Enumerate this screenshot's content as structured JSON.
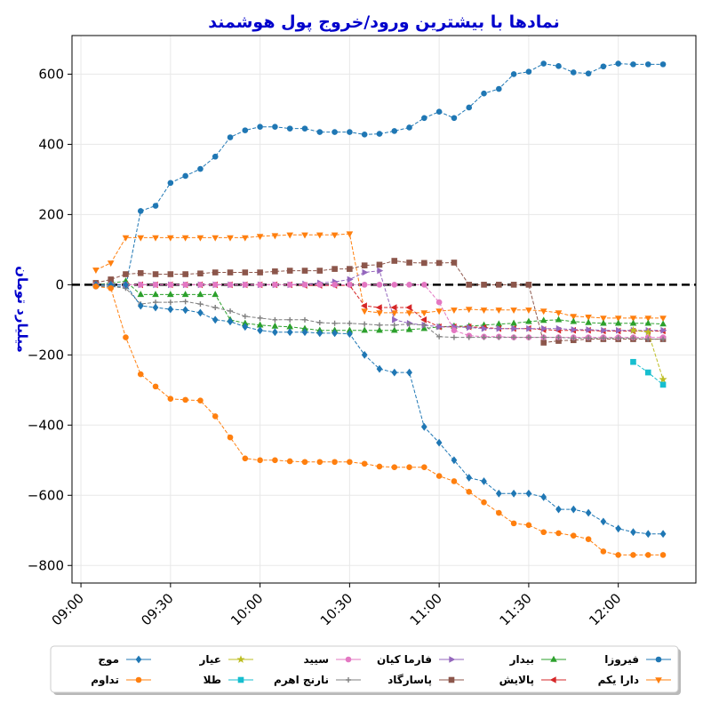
{
  "chart_data": {
    "type": "line",
    "title": "نمادها با بیشترین ورود/خروج پول هوشمند",
    "ylabel": "میلیارد تومان",
    "xlabel": "",
    "ylim": [
      -850,
      710
    ],
    "y_ticks": [
      -800,
      -600,
      -400,
      -200,
      0,
      200,
      400,
      600
    ],
    "y_tick_labels": [
      "−800",
      "−600",
      "−400",
      "−200",
      "0",
      "200",
      "400",
      "600"
    ],
    "x_ticks": [
      "09:00",
      "09:30",
      "10:00",
      "10:30",
      "11:00",
      "11:30",
      "12:00"
    ],
    "x_tick_minutes": [
      540,
      570,
      600,
      630,
      660,
      690,
      720
    ],
    "xlim_minutes": [
      537,
      746
    ],
    "grid": true,
    "zero_line": true,
    "legend_placement": "bottom-center",
    "series": [
      {
        "name": "فیروزا",
        "color": "#1f77b4",
        "marker": "circle",
        "x": [
          "09:05",
          "09:10",
          "09:15",
          "09:20",
          "09:25",
          "09:30",
          "09:35",
          "09:40",
          "09:45",
          "09:50",
          "09:55",
          "10:00",
          "10:05",
          "10:10",
          "10:15",
          "10:20",
          "10:25",
          "10:30",
          "10:35",
          "10:40",
          "10:45",
          "10:50",
          "10:55",
          "11:00",
          "11:05",
          "11:10",
          "11:15",
          "11:20",
          "11:25",
          "11:30",
          "11:35",
          "11:40",
          "11:45",
          "11:50",
          "11:55",
          "12:00",
          "12:05",
          "12:10",
          "12:15"
        ],
        "y": [
          -5,
          -5,
          -5,
          210,
          225,
          290,
          310,
          330,
          365,
          420,
          440,
          450,
          450,
          445,
          445,
          435,
          435,
          435,
          428,
          430,
          438,
          448,
          475,
          493,
          475,
          505,
          545,
          558,
          600,
          607,
          630,
          623,
          605,
          602,
          622,
          630,
          628,
          628,
          628
        ]
      },
      {
        "name": "دارا یکم",
        "color": "#ff7f0e",
        "marker": "triangle-down",
        "x": [
          "09:05",
          "09:10",
          "09:15",
          "09:20",
          "09:25",
          "09:30",
          "09:35",
          "09:40",
          "09:45",
          "09:50",
          "09:55",
          "10:00",
          "10:05",
          "10:10",
          "10:15",
          "10:20",
          "10:25",
          "10:30",
          "10:35",
          "10:40",
          "10:45",
          "10:50",
          "10:55",
          "11:00",
          "11:05",
          "11:10",
          "11:15",
          "11:20",
          "11:25",
          "11:30",
          "11:35",
          "11:40",
          "11:45",
          "11:50",
          "11:55",
          "12:00",
          "12:05",
          "12:10",
          "12:15"
        ],
        "y": [
          42,
          62,
          134,
          134,
          134,
          134,
          134,
          134,
          134,
          134,
          134,
          138,
          140,
          142,
          142,
          142,
          142,
          145,
          -75,
          -80,
          -80,
          -80,
          -80,
          -75,
          -72,
          -70,
          -72,
          -72,
          -72,
          -72,
          -75,
          -80,
          -90,
          -92,
          -95,
          -95,
          -95,
          -95,
          -95
        ]
      },
      {
        "name": "بیدار",
        "color": "#2ca02c",
        "marker": "triangle-up",
        "x": [
          "09:05",
          "09:10",
          "09:15",
          "09:20",
          "09:25",
          "09:30",
          "09:35",
          "09:40",
          "09:45",
          "09:50",
          "09:55",
          "10:00",
          "10:05",
          "10:10",
          "10:15",
          "10:20",
          "10:25",
          "10:30",
          "10:35",
          "10:40",
          "10:45",
          "10:50",
          "10:55",
          "11:00",
          "11:05",
          "11:10",
          "11:15",
          "11:20",
          "11:25",
          "11:30",
          "11:35",
          "11:40",
          "11:45",
          "11:50",
          "11:55",
          "12:00",
          "12:05",
          "12:10",
          "12:15"
        ],
        "y": [
          0,
          5,
          10,
          -28,
          -28,
          -28,
          -28,
          -28,
          -28,
          -100,
          -110,
          -115,
          -118,
          -120,
          -125,
          -130,
          -130,
          -130,
          -130,
          -130,
          -130,
          -128,
          -125,
          -120,
          -118,
          -118,
          -115,
          -112,
          -110,
          -105,
          -102,
          -100,
          -105,
          -108,
          -110,
          -110,
          -110,
          -110,
          -112
        ]
      },
      {
        "name": "پالایش",
        "color": "#d62728",
        "marker": "triangle-left",
        "x": [
          "09:05",
          "09:10",
          "09:15",
          "09:20",
          "09:25",
          "09:30",
          "09:35",
          "09:40",
          "09:45",
          "09:50",
          "09:55",
          "10:00",
          "10:05",
          "10:10",
          "10:15",
          "10:20",
          "10:25",
          "10:30",
          "10:35",
          "10:40",
          "10:45",
          "10:50",
          "10:55",
          "11:00",
          "11:05",
          "11:10",
          "11:15",
          "11:20",
          "11:25",
          "11:30",
          "11:35",
          "11:40",
          "11:45",
          "11:50",
          "11:55",
          "12:00",
          "12:05",
          "12:10",
          "12:15"
        ],
        "y": [
          0,
          0,
          0,
          0,
          0,
          0,
          0,
          0,
          0,
          0,
          0,
          0,
          0,
          0,
          -2,
          -2,
          -2,
          -2,
          -60,
          -65,
          -65,
          -65,
          -100,
          -120,
          -120,
          -120,
          -122,
          -125,
          -125,
          -125,
          -128,
          -130,
          -130,
          -130,
          -132,
          -132,
          -132,
          -132,
          -132
        ]
      },
      {
        "name": "فارما کیان",
        "color": "#9467bd",
        "marker": "triangle-right",
        "x": [
          "09:05",
          "09:10",
          "09:15",
          "09:20",
          "09:25",
          "09:30",
          "09:35",
          "09:40",
          "09:45",
          "09:50",
          "09:55",
          "10:00",
          "10:05",
          "10:10",
          "10:15",
          "10:20",
          "10:25",
          "10:30",
          "10:35",
          "10:40",
          "10:45",
          "10:50",
          "10:55",
          "11:00",
          "11:05",
          "11:10",
          "11:15",
          "11:20",
          "11:25",
          "11:30",
          "11:35",
          "11:40",
          "11:45",
          "11:50",
          "11:55",
          "12:00",
          "12:05",
          "12:10",
          "12:15"
        ],
        "y": [
          0,
          0,
          0,
          0,
          0,
          0,
          0,
          0,
          0,
          0,
          0,
          0,
          0,
          0,
          2,
          5,
          8,
          15,
          35,
          40,
          -100,
          -110,
          -115,
          -120,
          -120,
          -122,
          -125,
          -125,
          -125,
          -125,
          -125,
          -125,
          -128,
          -128,
          -130,
          -130,
          -130,
          -130,
          -130
        ]
      },
      {
        "name": "پاسارگاد",
        "color": "#8c564b",
        "marker": "square",
        "x": [
          "09:05",
          "09:10",
          "09:15",
          "09:20",
          "09:25",
          "09:30",
          "09:35",
          "09:40",
          "09:45",
          "09:50",
          "09:55",
          "10:00",
          "10:05",
          "10:10",
          "10:15",
          "10:20",
          "10:25",
          "10:30",
          "10:35",
          "10:40",
          "10:45",
          "10:50",
          "10:55",
          "11:00",
          "11:05",
          "11:10",
          "11:15",
          "11:20",
          "11:25",
          "11:30",
          "11:35",
          "11:40",
          "11:45",
          "11:50",
          "11:55",
          "12:00",
          "12:05",
          "12:10",
          "12:15"
        ],
        "y": [
          5,
          15,
          30,
          33,
          30,
          30,
          30,
          32,
          35,
          35,
          35,
          35,
          38,
          40,
          40,
          40,
          45,
          45,
          55,
          57,
          68,
          63,
          62,
          62,
          63,
          0,
          0,
          0,
          0,
          0,
          -165,
          -160,
          -158,
          -155,
          -155,
          -155,
          -155,
          -155,
          -155
        ]
      },
      {
        "name": "سیید",
        "color": "#e377c2",
        "marker": "circle",
        "x": [
          "09:05",
          "09:10",
          "09:15",
          "09:20",
          "09:25",
          "09:30",
          "09:35",
          "09:40",
          "09:45",
          "09:50",
          "09:55",
          "10:00",
          "10:05",
          "10:10",
          "10:15",
          "10:20",
          "10:25",
          "10:30",
          "10:35",
          "10:40",
          "10:45",
          "10:50",
          "10:55",
          "11:00",
          "11:05",
          "11:10",
          "11:15",
          "11:20",
          "11:25",
          "11:30",
          "11:35",
          "11:40",
          "11:45",
          "11:50",
          "11:55",
          "12:00",
          "12:05",
          "12:10",
          "12:15"
        ],
        "y": [
          0,
          0,
          0,
          0,
          0,
          0,
          0,
          0,
          0,
          0,
          0,
          0,
          0,
          0,
          0,
          0,
          0,
          0,
          0,
          0,
          0,
          0,
          0,
          -50,
          -130,
          -145,
          -148,
          -148,
          -150,
          -150,
          -150,
          -150,
          -150,
          -150,
          -150,
          -150,
          -150,
          -150,
          -150
        ]
      },
      {
        "name": "نارنج اهرم",
        "color": "#7f7f7f",
        "marker": "plus",
        "x": [
          "09:05",
          "09:10",
          "09:15",
          "09:20",
          "09:25",
          "09:30",
          "09:35",
          "09:40",
          "09:45",
          "09:50",
          "09:55",
          "10:00",
          "10:05",
          "10:10",
          "10:15",
          "10:20",
          "10:25",
          "10:30",
          "10:35",
          "10:40",
          "10:45",
          "10:50",
          "10:55",
          "11:00",
          "11:05",
          "11:10",
          "11:15",
          "11:20",
          "11:25",
          "11:30",
          "11:35",
          "11:40",
          "11:45",
          "11:50",
          "11:55",
          "12:00",
          "12:05",
          "12:10",
          "12:15"
        ],
        "y": [
          0,
          -5,
          -10,
          -55,
          -50,
          -50,
          -48,
          -55,
          -65,
          -75,
          -90,
          -95,
          -100,
          -100,
          -100,
          -108,
          -110,
          -110,
          -112,
          -115,
          -115,
          -112,
          -115,
          -148,
          -150,
          -150,
          -150,
          -150,
          -150,
          -150,
          -150,
          -150,
          -152,
          -152,
          -152,
          -152,
          -152,
          -155,
          -155
        ]
      },
      {
        "name": "عیار",
        "color": "#bcbd22",
        "marker": "star",
        "x": [
          "12:05",
          "12:10",
          "12:15"
        ],
        "y": [
          -130,
          -135,
          -270
        ]
      },
      {
        "name": "طلا",
        "color": "#17becf",
        "marker": "square",
        "x": [
          "12:05",
          "12:10",
          "12:15"
        ],
        "y": [
          -220,
          -250,
          -285
        ]
      },
      {
        "name": "موج",
        "color": "#1f77b4",
        "marker": "diamond",
        "x": [
          "09:05",
          "09:10",
          "09:15",
          "09:20",
          "09:25",
          "09:30",
          "09:35",
          "09:40",
          "09:45",
          "09:50",
          "09:55",
          "10:00",
          "10:05",
          "10:10",
          "10:15",
          "10:20",
          "10:25",
          "10:30",
          "10:35",
          "10:40",
          "10:45",
          "10:50",
          "10:55",
          "11:00",
          "11:05",
          "11:10",
          "11:15",
          "11:20",
          "11:25",
          "11:30",
          "11:35",
          "11:40",
          "11:45",
          "11:50",
          "11:55",
          "12:00",
          "12:05",
          "12:10",
          "12:15"
        ],
        "y": [
          0,
          0,
          0,
          -60,
          -65,
          -70,
          -72,
          -80,
          -100,
          -105,
          -120,
          -130,
          -135,
          -135,
          -135,
          -138,
          -138,
          -140,
          -200,
          -240,
          -250,
          -250,
          -405,
          -450,
          -500,
          -550,
          -560,
          -595,
          -595,
          -595,
          -605,
          -640,
          -640,
          -650,
          -675,
          -695,
          -705,
          -710,
          -710
        ]
      },
      {
        "name": "تداوم",
        "color": "#ff7f0e",
        "marker": "circle",
        "x": [
          "09:05",
          "09:10",
          "09:15",
          "09:20",
          "09:25",
          "09:30",
          "09:35",
          "09:40",
          "09:45",
          "09:50",
          "09:55",
          "10:00",
          "10:05",
          "10:10",
          "10:15",
          "10:20",
          "10:25",
          "10:30",
          "10:35",
          "10:40",
          "10:45",
          "10:50",
          "10:55",
          "11:00",
          "11:05",
          "11:10",
          "11:15",
          "11:20",
          "11:25",
          "11:30",
          "11:35",
          "11:40",
          "11:45",
          "11:50",
          "11:55",
          "12:00",
          "12:05",
          "12:10",
          "12:15"
        ],
        "y": [
          -5,
          -10,
          -150,
          -255,
          -290,
          -325,
          -328,
          -330,
          -375,
          -435,
          -495,
          -500,
          -500,
          -503,
          -505,
          -505,
          -505,
          -505,
          -510,
          -518,
          -520,
          -520,
          -520,
          -545,
          -560,
          -590,
          -620,
          -650,
          -680,
          -685,
          -705,
          -708,
          -715,
          -725,
          -760,
          -770,
          -770,
          -770,
          -770
        ]
      }
    ]
  }
}
